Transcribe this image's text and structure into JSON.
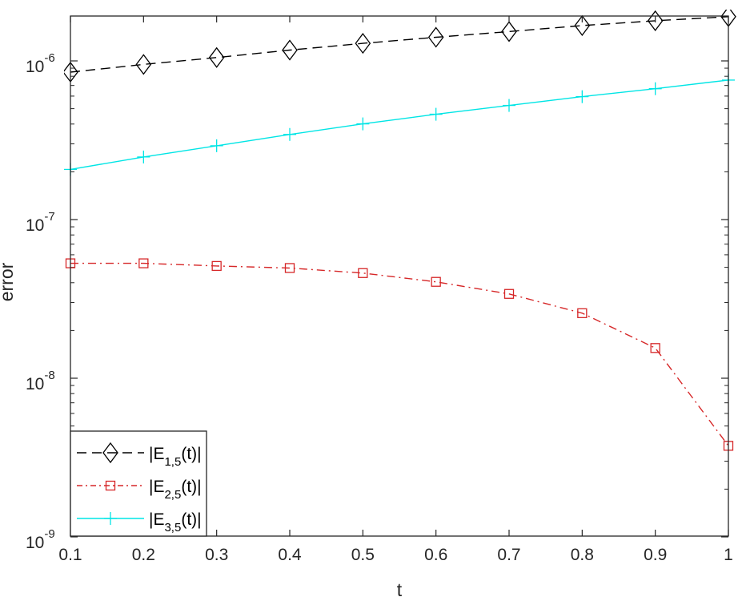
{
  "chart_data": {
    "type": "line",
    "title": "",
    "xlabel": "t",
    "ylabel": "error",
    "yscale": "log",
    "xlim": [
      0.1,
      1.0
    ],
    "ylim": [
      1e-09,
      1.9e-06
    ],
    "grid": false,
    "legend_position": "lower left",
    "x": [
      0.1,
      0.2,
      0.3,
      0.4,
      0.5,
      0.6,
      0.7,
      0.8,
      0.9,
      1.0
    ],
    "x_ticks": [
      "0.1",
      "0.2",
      "0.3",
      "0.4",
      "0.5",
      "0.6",
      "0.7",
      "0.8",
      "0.9",
      "1"
    ],
    "y_ticks": [
      {
        "value": 1e-06,
        "base": "10",
        "exp": "-6"
      },
      {
        "value": 1e-07,
        "base": "10",
        "exp": "-7"
      },
      {
        "value": 1e-08,
        "base": "10",
        "exp": "-8"
      },
      {
        "value": 1e-09,
        "base": "10",
        "exp": "-9"
      }
    ],
    "series": [
      {
        "name": "|E_{1,5}(t)|",
        "label_main": "|E",
        "label_sub": "1,5",
        "label_tail": "(t)|",
        "color": "#000000",
        "line_style": "dashed",
        "marker": "diamond",
        "values": [
          8.5e-07,
          9.5e-07,
          1.05e-06,
          1.17e-06,
          1.29e-06,
          1.41e-06,
          1.53e-06,
          1.67e-06,
          1.79e-06,
          1.9e-06
        ]
      },
      {
        "name": "|E_{2,5}(t)|",
        "label_main": "|E",
        "label_sub": "2,5",
        "label_tail": "(t)|",
        "color": "#d62728",
        "line_style": "dashdot",
        "marker": "square",
        "values": [
          5.3e-08,
          5.3e-08,
          5.1e-08,
          4.95e-08,
          4.6e-08,
          4.05e-08,
          3.4e-08,
          2.57e-08,
          1.55e-08,
          3.75e-09
        ]
      },
      {
        "name": "|E_{3,5}(t)|",
        "label_main": "|E",
        "label_sub": "3,5",
        "label_tail": "(t)|",
        "color": "#00e5e5",
        "line_style": "solid",
        "marker": "plus",
        "values": [
          2.07e-07,
          2.48e-07,
          2.92e-07,
          3.44e-07,
          4.01e-07,
          4.61e-07,
          5.24e-07,
          5.95e-07,
          6.68e-07,
          7.57e-07
        ]
      }
    ]
  }
}
